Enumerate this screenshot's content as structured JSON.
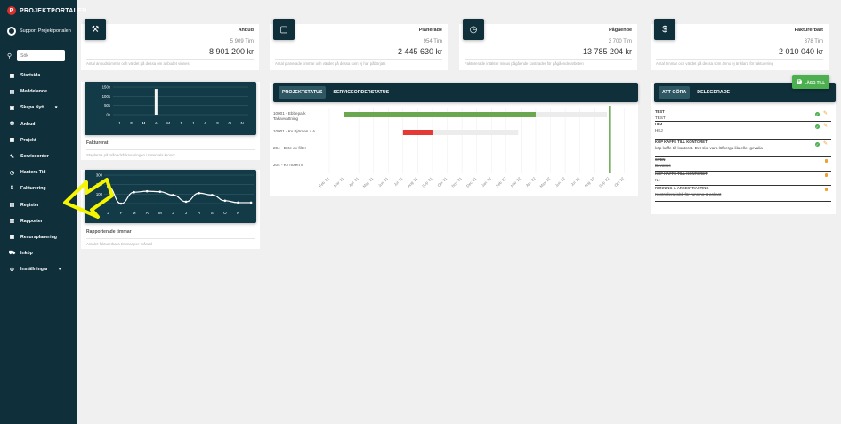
{
  "app": {
    "brand": "PROJEKTPORTALEN",
    "brand_logo": "P"
  },
  "user": {
    "name": "Support Projektportalen"
  },
  "search": {
    "placeholder": "Sök"
  },
  "sidebar": {
    "items": [
      {
        "label": "Startsida",
        "icon": "grid-icon",
        "glyph": "▦"
      },
      {
        "label": "Meddelande",
        "icon": "message-icon",
        "glyph": "▤"
      },
      {
        "label": "Skapa Nytt",
        "icon": "add-document-icon",
        "glyph": "▣",
        "caret": "▾"
      },
      {
        "label": "Anbud",
        "icon": "gavel-icon",
        "glyph": "⚒"
      },
      {
        "label": "Projekt",
        "icon": "project-icon",
        "glyph": "▦"
      },
      {
        "label": "Serviceorder",
        "icon": "wrench-icon",
        "glyph": "✎"
      },
      {
        "label": "Hantera Tid",
        "icon": "clock-icon",
        "glyph": "◷"
      },
      {
        "label": "Fakturering",
        "icon": "dollar-icon",
        "glyph": "$"
      },
      {
        "label": "Register",
        "icon": "register-icon",
        "glyph": "▤"
      },
      {
        "label": "Rapporter",
        "icon": "report-icon",
        "glyph": "▥"
      },
      {
        "label": "Resursplanering",
        "icon": "calendar-icon",
        "glyph": "▦"
      },
      {
        "label": "Inköp",
        "icon": "cart-icon",
        "glyph": "⛟"
      },
      {
        "label": "Inställningar",
        "icon": "gear-icon",
        "glyph": "⚙",
        "caret": "▾"
      }
    ]
  },
  "stats": [
    {
      "title": "Anbud",
      "hours": "5 909 Tim",
      "value": "8 901 200 kr",
      "desc": "Antal anbudstimmar och värdet på dessa om anbudet vinnes",
      "icon": "gavel-icon",
      "glyph": "⚒"
    },
    {
      "title": "Planerade",
      "hours": "954 Tim",
      "value": "2 445 630 kr",
      "desc": "Antal planerade timmar och värdet på dessa som ej har påbörjats",
      "icon": "calendar-icon",
      "glyph": "▢"
    },
    {
      "title": "Pågående",
      "hours": "3 700 Tim",
      "value": "13 785 204 kr",
      "desc": "Fakturerade intäkter minus pågående kostnader för pågående arbeten",
      "icon": "clock-icon",
      "glyph": "◷"
    },
    {
      "title": "Fakturerbart",
      "hours": "378 Tim",
      "value": "2 010 040 kr",
      "desc": "Antal timmar och värdet på dessa som ännu ej är klara för fakturering",
      "icon": "dollar-icon",
      "glyph": "$"
    }
  ],
  "invoiced_card": {
    "title": "Fakturerat",
    "desc": "Staplarna på månadsfaktureringen i tusentals kronor"
  },
  "hours_card": {
    "title": "Rapporterade timmar",
    "desc": "Antalet fakturerbara timmar per månad"
  },
  "chart_data": [
    {
      "type": "bar",
      "categories": [
        "J",
        "F",
        "M",
        "A",
        "M",
        "J",
        "J",
        "A",
        "S",
        "O",
        "N"
      ],
      "values": [
        0,
        0,
        0,
        140,
        0,
        0,
        0,
        0,
        0,
        0,
        0
      ],
      "ytick_labels": [
        "150k",
        "100k",
        "50k",
        "0k"
      ],
      "ylim": [
        0,
        150
      ],
      "grid": true
    },
    {
      "type": "line",
      "categories": [
        "J",
        "F",
        "M",
        "A",
        "M",
        "J",
        "J",
        "A",
        "S",
        "O",
        "N",
        ""
      ],
      "values": [
        180,
        0,
        120,
        130,
        125,
        90,
        20,
        110,
        90,
        30,
        10,
        10
      ],
      "ytick_labels": [
        "300",
        "200",
        "100",
        "0"
      ],
      "ylim": [
        0,
        300
      ],
      "grid": true
    },
    {
      "type": "gantt",
      "tasks": [
        {
          "label": "10001 - Ebbepark Takavvattning",
          "start": "Mar '21",
          "end": "Apr '22",
          "progress_end": "Apr '22",
          "color": "#6aa84f"
        },
        {
          "label": "10001 - Kv Björnen 4 A",
          "start": "Jul '21",
          "end": "Jan '22",
          "progress_end": "Sep '21",
          "color": "#e53935"
        },
        {
          "label": "204 - Byte av filter",
          "start": "",
          "end": ""
        },
        {
          "label": "204 - Kv noten 8",
          "start": "",
          "end": ""
        }
      ],
      "x_ticks": [
        "Feb '21",
        "Mar '21",
        "Apr '21",
        "May '21",
        "Jun '21",
        "Jul '21",
        "Aug '21",
        "Sep '21",
        "Oct '21",
        "Nov '21",
        "Dec '21",
        "Jan '22",
        "Feb '22",
        "Mar '22",
        "Apr '22",
        "May '22",
        "Jun '22",
        "Jul '22",
        "Aug '22",
        "Sep '22",
        "Oct '22"
      ],
      "today": "Sep '22"
    }
  ],
  "gantt": {
    "tabs": [
      "PROJEKTSTATUS",
      "SERVICEORDERSTATUS"
    ]
  },
  "todo": {
    "tabs": [
      "ATT GÖRA",
      "DELEGERADE"
    ],
    "add_label": "LÄGG TILL",
    "items": [
      {
        "title": "TEST",
        "desc": "TEST",
        "done": false,
        "icons": [
          "check",
          "edit"
        ]
      },
      {
        "title": "HEJ",
        "desc": "HEJ",
        "done": false,
        "icons": [
          "check",
          "edit"
        ]
      },
      {
        "title": "KÖP KAFFE TILL KONTORET",
        "desc": "köp kaffe till kontoret. Det ska vara löfberga lila eller gevalia",
        "done": false,
        "icons": [
          "check",
          "edit"
        ]
      },
      {
        "title": "SVEN",
        "desc": "Bevakas",
        "done": true,
        "icons": [
          "lock"
        ]
      },
      {
        "title": "KÖP KAFFE TILL KONTORET",
        "desc": "Ne",
        "done": true,
        "icons": [
          "lock"
        ]
      },
      {
        "title": "RUNNING & AREESTRASTING",
        "desc": "Kontrollera jobb för running & askast",
        "done": true,
        "icons": [
          "lock"
        ]
      }
    ]
  }
}
